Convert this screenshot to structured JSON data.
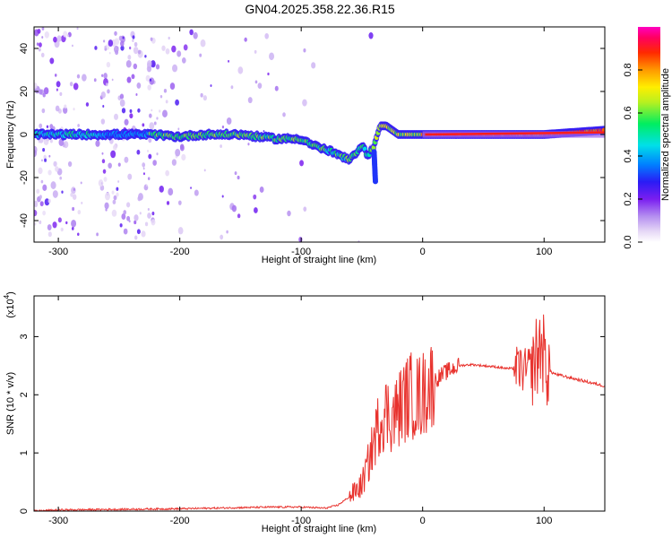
{
  "title": "GN04.2025.358.22.36.R15",
  "colors": {
    "snr_line": "#e8322d",
    "axis": "#000000",
    "background": "#ffffff"
  },
  "colorbar": {
    "label": "Normalized spectral amplitude",
    "ticks": [
      "0.0",
      "0.2",
      "0.4",
      "0.6",
      "0.8"
    ],
    "range": [
      0,
      1
    ],
    "colormap": "rainbow (white-lavender-purple-blue-cyan-green-yellow-orange-red-magenta)"
  },
  "chart_data": [
    {
      "type": "heatmap",
      "xlabel": "Height of straight line (km)",
      "ylabel": "Frequency (Hz)",
      "xlim": [
        -320,
        150
      ],
      "ylim": [
        -50,
        50
      ],
      "xticks": [
        -300,
        -200,
        -100,
        0,
        100
      ],
      "xtick_labels": [
        "-300",
        "-200",
        "-100",
        "0",
        "100"
      ],
      "yticks": [
        -40,
        -20,
        0,
        20,
        40
      ],
      "ytick_labels": [
        "-40",
        "-20",
        "0",
        "20",
        "40"
      ],
      "ridge": {
        "description_x": [
          -320,
          -300,
          -280,
          -265,
          -250,
          -225,
          -200,
          -180,
          -150,
          -120,
          -100,
          -90,
          -75,
          -60,
          -50,
          -45,
          -40,
          -35,
          -30,
          -25,
          -20,
          -10,
          0,
          50,
          100,
          150
        ],
        "frequency_y": [
          0,
          0,
          0,
          0,
          0,
          0,
          -1,
          0,
          0,
          -2,
          -2,
          -5,
          -8,
          -12,
          -5,
          -10,
          -5,
          4,
          4,
          2,
          0,
          0,
          0,
          0,
          0,
          2
        ]
      }
    },
    {
      "type": "line",
      "xlabel": "Height of straight line (km)",
      "ylabel": "SNR (10 * v/v)",
      "y_multiplier": "(x10",
      "y_multiplier_exp": "4",
      "xlim": [
        -320,
        150
      ],
      "ylim": [
        0,
        3.7
      ],
      "xticks": [
        -300,
        -200,
        -100,
        0,
        100
      ],
      "xtick_labels": [
        "-300",
        "-200",
        "-100",
        "0",
        "100"
      ],
      "yticks": [
        0,
        1,
        2,
        3
      ],
      "ytick_labels": [
        "0",
        "1",
        "2",
        "3"
      ],
      "series": [
        {
          "x": [
            -320,
            -300,
            -250,
            -200,
            -150,
            -120,
            -100,
            -80,
            -70,
            -60,
            -50,
            -45,
            -40,
            -35,
            -30,
            -25,
            -20,
            -15,
            -10,
            -5,
            0,
            5,
            10,
            20,
            30,
            40,
            50,
            60,
            70,
            80,
            85,
            90,
            95,
            98,
            100,
            105,
            110,
            120,
            130,
            140,
            150
          ],
          "y": [
            0.0,
            0.02,
            0.03,
            0.04,
            0.06,
            0.07,
            0.07,
            0.05,
            0.1,
            0.25,
            0.45,
            0.8,
            1.2,
            1.6,
            1.7,
            1.6,
            1.75,
            1.9,
            2.0,
            1.95,
            2.0,
            2.15,
            2.25,
            2.4,
            2.5,
            2.52,
            2.5,
            2.48,
            2.45,
            2.45,
            2.4,
            2.5,
            2.7,
            2.9,
            2.6,
            2.4,
            2.35,
            2.3,
            2.25,
            2.2,
            2.15
          ]
        }
      ]
    }
  ]
}
